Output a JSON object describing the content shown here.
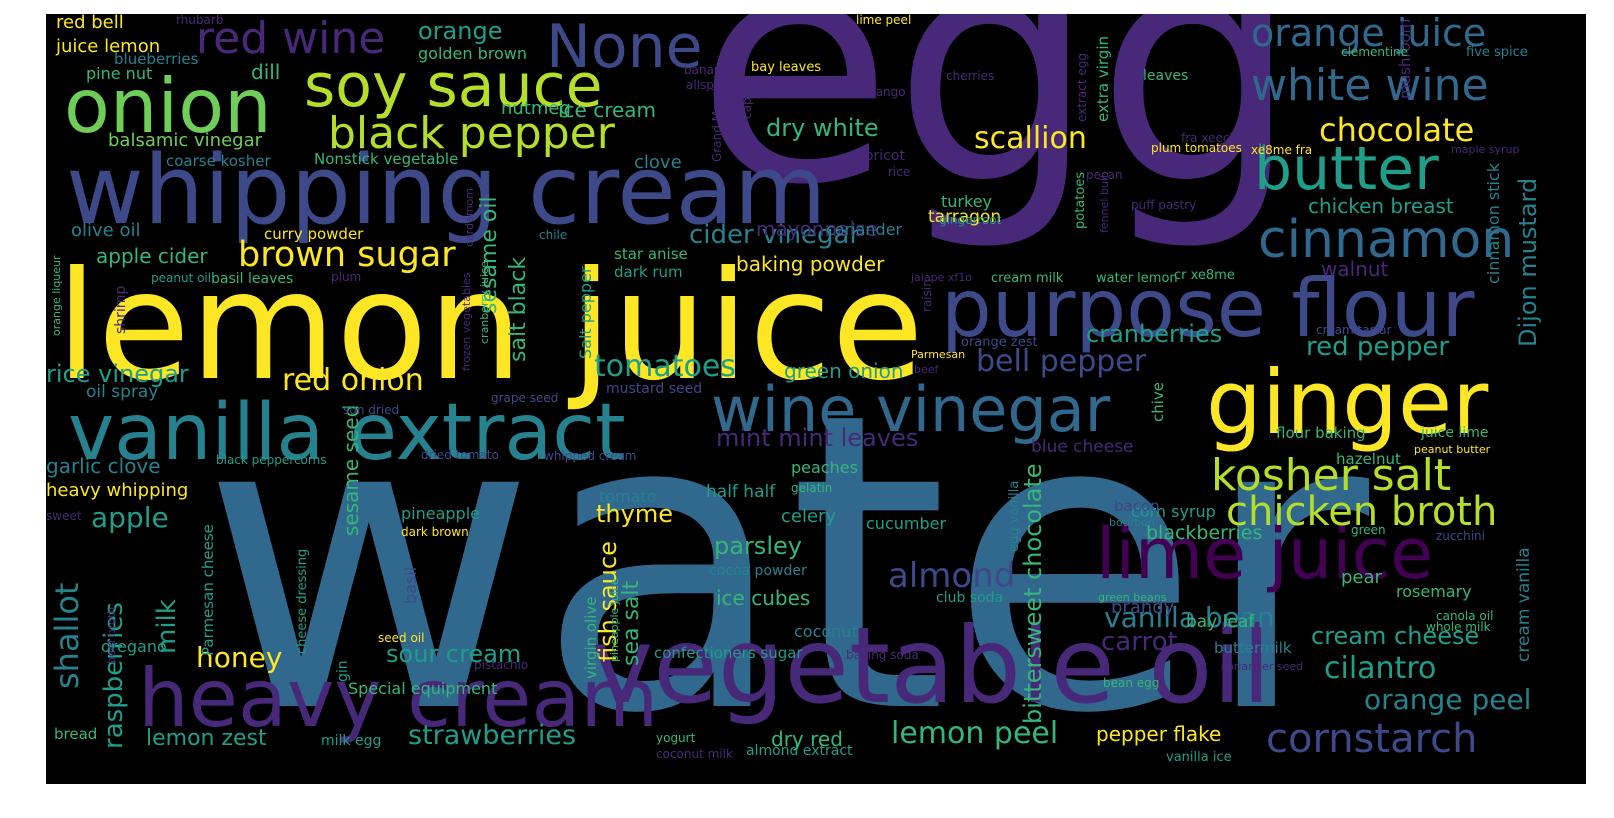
{
  "palette": {
    "yellow": "#fde725",
    "lime": "#b5de2b",
    "green": "#6ece58",
    "teal_green": "#35b779",
    "teal": "#1f9e89",
    "cyan": "#26828e",
    "blue": "#31688e",
    "indigo": "#3e4989",
    "violet": "#482878",
    "purple": "#440154",
    "background": "#000000"
  },
  "words": [
    "egg",
    "water",
    "lemon juice",
    "whipping cream",
    "vegetable oil",
    "heavy cream",
    "purpose flour",
    "ginger",
    "vanilla extract",
    "wine vinegar",
    "onion",
    "soy sauce",
    "None",
    "lime juice",
    "butter",
    "cinnamon",
    "red wine",
    "black pepper",
    "white wine",
    "orange juice",
    "kosher salt",
    "chicken broth",
    "brown sugar",
    "cornstarch",
    "almond",
    "chocolate",
    "scallion",
    "red onion",
    "tomatoes",
    "bell pepper",
    "cider vinegar",
    "orange peel",
    "cilantro",
    "lemon peel",
    "strawberries",
    "vanilla bean",
    "red pepper",
    "cream cheese",
    "cranberries",
    "mint mint leaves",
    "chicken breast",
    "Dijon mustard",
    "shallot",
    "raspberries",
    "milk",
    "apple",
    "honey",
    "sour cream",
    "rice vinegar",
    "dry white",
    "apple cider",
    "balsamic vinegar",
    "juice lemon",
    "red bell",
    "pine nut",
    "blueberries",
    "dill",
    "orange",
    "golden brown",
    "nutmeg",
    "ice cream",
    "coarse kosher",
    "Nonstick vegetable",
    "clove",
    "mayonnaise",
    "olive oil",
    "curry powder",
    "baking powder",
    "sesame oil",
    "salt black",
    "garlic clove",
    "heavy whipping",
    "oil spray",
    "sesame seed",
    "fish sauce",
    "sea salt",
    "thyme",
    "parsley",
    "ice cubes",
    "carrot",
    "brandy",
    "pepper flake",
    "lemon zest",
    "dry red",
    "bittersweet chocolate",
    "celery",
    "cucumber",
    "pineapple",
    "cocoa powder",
    "coconut",
    "confectioners sugar",
    "baking soda",
    "half half",
    "tomato",
    "gelatin",
    "peaches",
    "blackberries",
    "corn syrup",
    "bay leaf",
    "pear",
    "rosemary",
    "cream vanilla",
    "cinnamon stick",
    "walnut",
    "cumin",
    "mushroom",
    "turkey",
    "tarragon",
    "gingerroot",
    "coriander",
    "green onion",
    "blue cheese",
    "bacon",
    "flour baking",
    "juice lime",
    "hazelnut",
    "buttermilk",
    "club soda",
    "seed oil",
    "milk egg",
    "yogurt",
    "coconut milk",
    "almond extract",
    "bread",
    "oregano",
    "gin",
    "Special equipment",
    "Parmesan cheese",
    "cheese dressing",
    "basil",
    "basil leaves",
    "peanut oil",
    "plum",
    "shrimp",
    "orange liqueur",
    "star anise",
    "dark rum",
    "chile",
    "Salt pepper",
    "mustard seed",
    "sun dried",
    "grape seed",
    "dried tomato",
    "whipped cream",
    "black peppercorns",
    "sweet",
    "beef broth",
    "dark brown",
    "pistachio",
    "virgin olive",
    "pineapple juice",
    "cranberry juice",
    "frozen vegetables",
    "cardamom",
    "apricot",
    "rice",
    "cherries",
    "mango",
    "banana",
    "allspice",
    "caper",
    "Grand Marnier",
    "bay leaves",
    "lime peel",
    "rhubarb",
    "clementine",
    "five spice",
    "maple syrup",
    "plum tomatoes",
    "xe8me fra",
    "pecan",
    "potatoes",
    "fennel bulb",
    "puff pastry",
    "extract egg",
    "extra virgin",
    "fra xeeche",
    "leaves",
    "jalape xf1o",
    "cream milk",
    "water lemon",
    "cr xe8me",
    "raisin",
    "orange zest",
    "Parmesan",
    "cream tartar",
    "beef",
    "chive",
    "egg vanilla",
    "bourbon",
    "green",
    "zucchini",
    "green beans",
    "canola oil",
    "whole milk",
    "coriander seed",
    "bean egg",
    "vanilla ice",
    "peanut butter"
  ]
}
